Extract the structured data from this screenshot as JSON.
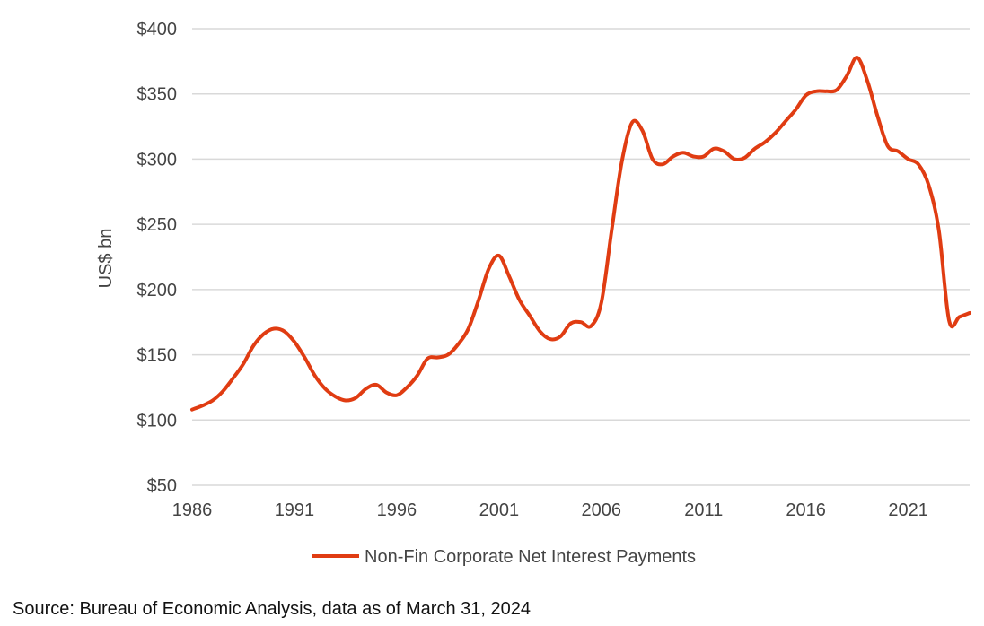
{
  "chart_data": {
    "type": "line",
    "ylabel": "US$ bn",
    "xlabel": "",
    "ylim": [
      50,
      400
    ],
    "xlim": [
      1986,
      2024
    ],
    "y_ticks": [
      50,
      100,
      150,
      200,
      250,
      300,
      350,
      400
    ],
    "y_tick_labels": [
      "$50",
      "$100",
      "$150",
      "$200",
      "$250",
      "$300",
      "$350",
      "$400"
    ],
    "x_ticks": [
      1986,
      1991,
      1996,
      2001,
      2006,
      2011,
      2016,
      2021
    ],
    "x_tick_labels": [
      "1986",
      "1991",
      "1996",
      "2001",
      "2006",
      "2011",
      "2016",
      "2021"
    ],
    "grid": "horizontal",
    "legend_position": "bottom",
    "series": [
      {
        "name": "Non-Fin Corporate Net Interest Payments",
        "color": "#e03c12",
        "x": [
          1986,
          1986.5,
          1987,
          1987.5,
          1988,
          1988.5,
          1989,
          1989.5,
          1990,
          1990.5,
          1991,
          1991.5,
          1992,
          1992.5,
          1993,
          1993.5,
          1994,
          1994.5,
          1995,
          1995.5,
          1996,
          1996.5,
          1997,
          1997.5,
          1998,
          1998.5,
          1999,
          1999.5,
          2000,
          2000.5,
          2001,
          2001.5,
          2002,
          2002.5,
          2003,
          2003.5,
          2004,
          2004.5,
          2005,
          2005.5,
          2006,
          2006.5,
          2007,
          2007.5,
          2008,
          2008.5,
          2009,
          2009.5,
          2010,
          2010.5,
          2011,
          2011.5,
          2012,
          2012.5,
          2013,
          2013.5,
          2014,
          2014.5,
          2015,
          2015.5,
          2016,
          2016.5,
          2017,
          2017.5,
          2018,
          2018.5,
          2019,
          2019.5,
          2020,
          2020.5,
          2021,
          2021.5,
          2022,
          2022.5,
          2023,
          2023.5,
          2024
        ],
        "values": [
          108,
          111,
          115,
          122,
          132,
          143,
          157,
          166,
          170,
          168,
          160,
          148,
          134,
          124,
          118,
          115,
          117,
          124,
          127,
          121,
          119,
          125,
          134,
          147,
          148,
          150,
          158,
          170,
          192,
          216,
          226,
          210,
          192,
          180,
          168,
          162,
          164,
          174,
          175,
          172,
          190,
          245,
          298,
          328,
          322,
          300,
          296,
          302,
          305,
          302,
          302,
          308,
          306,
          300,
          301,
          308,
          313,
          320,
          329,
          338,
          349,
          352,
          352,
          353,
          364,
          378,
          360,
          333,
          310,
          306,
          300,
          296,
          280,
          245,
          176,
          179,
          182
        ]
      }
    ]
  },
  "source": "Source: Bureau of Economic Analysis, data as of March 31, 2024"
}
